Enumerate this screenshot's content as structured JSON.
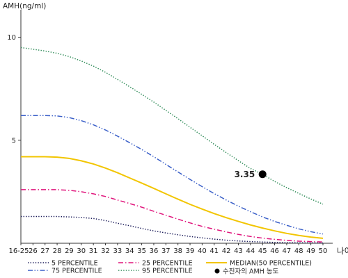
{
  "chart_data": {
    "type": "line",
    "ylabel": "AMH(ng/ml)",
    "xlabel": "나이",
    "x": [
      "16-25",
      "26",
      "27",
      "28",
      "29",
      "30",
      "31",
      "32",
      "33",
      "34",
      "35",
      "36",
      "37",
      "38",
      "39",
      "40",
      "41",
      "42",
      "43",
      "44",
      "45",
      "46",
      "47",
      "48",
      "49",
      "50"
    ],
    "ylim": [
      0,
      11.2
    ],
    "yticks": [
      5,
      10
    ],
    "grid": false,
    "legend_position": "bottom",
    "series": [
      {
        "name": "5 PERCENTILE",
        "style": "dotted",
        "color": "#1c1c5a",
        "values": [
          1.3,
          1.3,
          1.3,
          1.3,
          1.28,
          1.25,
          1.2,
          1.1,
          0.97,
          0.85,
          0.72,
          0.6,
          0.5,
          0.41,
          0.33,
          0.26,
          0.2,
          0.15,
          0.11,
          0.08,
          0.06,
          0.04,
          0.03,
          0.02,
          0.02,
          0.01
        ]
      },
      {
        "name": "25 PERCENTILE",
        "style": "dashdot",
        "color": "#e0157c",
        "values": [
          2.6,
          2.6,
          2.6,
          2.6,
          2.57,
          2.5,
          2.4,
          2.27,
          2.1,
          1.93,
          1.75,
          1.55,
          1.36,
          1.17,
          0.99,
          0.82,
          0.68,
          0.55,
          0.43,
          0.33,
          0.25,
          0.19,
          0.14,
          0.1,
          0.08,
          0.06
        ]
      },
      {
        "name": "MEDIAN(50 PERCENTILE)",
        "style": "solid",
        "color": "#f2c500",
        "values": [
          4.2,
          4.2,
          4.2,
          4.18,
          4.12,
          4.0,
          3.85,
          3.65,
          3.42,
          3.17,
          2.92,
          2.66,
          2.4,
          2.14,
          1.89,
          1.66,
          1.44,
          1.24,
          1.06,
          0.89,
          0.74,
          0.6,
          0.48,
          0.38,
          0.3,
          0.24
        ]
      },
      {
        "name": "75 PERCENTILE",
        "style": "dashdotdot",
        "color": "#3a5fc8",
        "values": [
          6.2,
          6.2,
          6.2,
          6.18,
          6.1,
          5.95,
          5.75,
          5.5,
          5.2,
          4.88,
          4.55,
          4.2,
          3.83,
          3.46,
          3.1,
          2.75,
          2.41,
          2.1,
          1.8,
          1.53,
          1.28,
          1.06,
          0.87,
          0.7,
          0.56,
          0.45
        ]
      },
      {
        "name": "95 PERCENTILE",
        "style": "dotted",
        "color": "#2e8b57",
        "values": [
          9.5,
          9.42,
          9.33,
          9.22,
          9.06,
          8.85,
          8.6,
          8.3,
          7.95,
          7.6,
          7.23,
          6.85,
          6.45,
          6.05,
          5.63,
          5.22,
          4.8,
          4.4,
          4.01,
          3.63,
          3.35,
          3.0,
          2.7,
          2.42,
          2.15,
          1.9
        ]
      }
    ],
    "marker": {
      "label": "수진자의 AMH 농도",
      "x": "45",
      "y": 3.35,
      "value_label": "3.35",
      "color": "#000000"
    }
  }
}
